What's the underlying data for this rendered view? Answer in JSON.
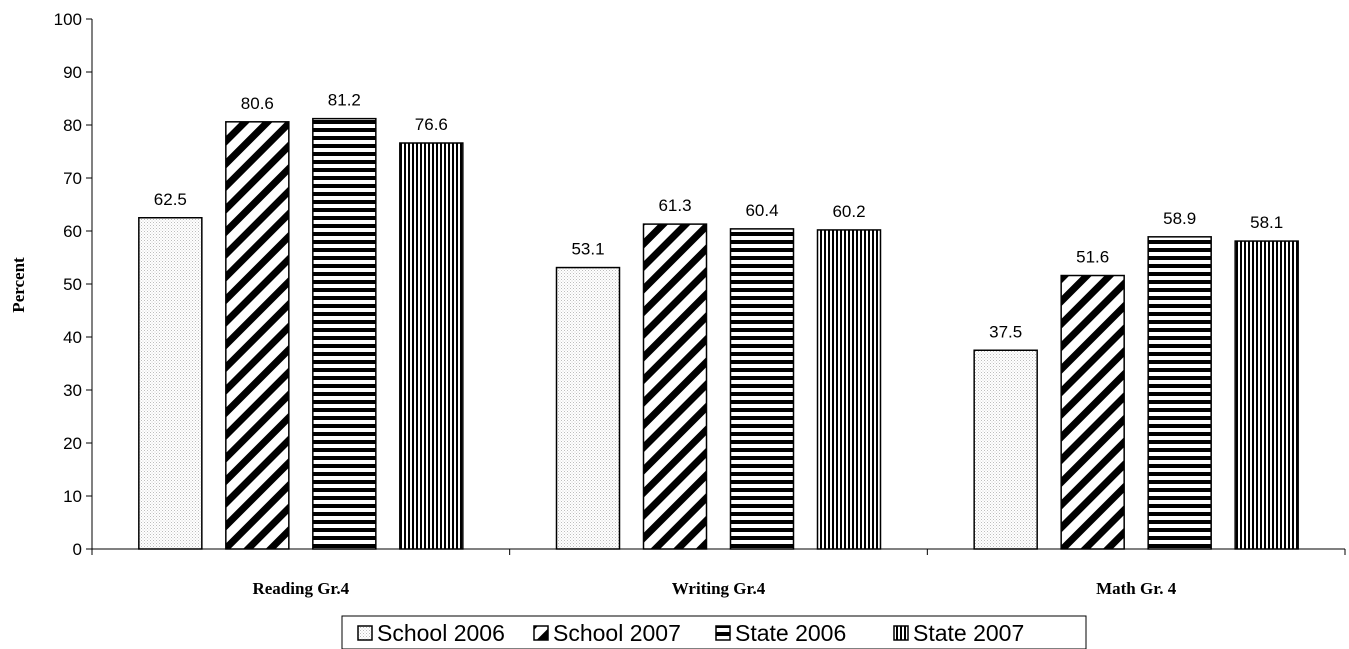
{
  "chart_data": {
    "type": "bar",
    "title": "",
    "xlabel": "",
    "ylabel": "Percent",
    "ylim": [
      0,
      100
    ],
    "yticks": [
      0,
      10,
      20,
      30,
      40,
      50,
      60,
      70,
      80,
      90,
      100
    ],
    "categories": [
      "Reading Gr.4",
      "Writing Gr.4",
      "Math Gr. 4"
    ],
    "series": [
      {
        "name": "School 2006",
        "pattern": "dotted",
        "values": [
          62.5,
          53.1,
          37.5
        ]
      },
      {
        "name": "School 2007",
        "pattern": "diagonal-stripes",
        "values": [
          80.6,
          61.3,
          51.6
        ]
      },
      {
        "name": "State 2006",
        "pattern": "horizontal-stripes",
        "values": [
          81.2,
          60.4,
          58.9
        ]
      },
      {
        "name": "State 2007",
        "pattern": "vertical-stripes",
        "values": [
          76.6,
          60.2,
          58.1
        ]
      }
    ],
    "legend_position": "bottom",
    "grid": false,
    "colors": {
      "bar_stroke": "#000000",
      "background": "#ffffff"
    }
  }
}
